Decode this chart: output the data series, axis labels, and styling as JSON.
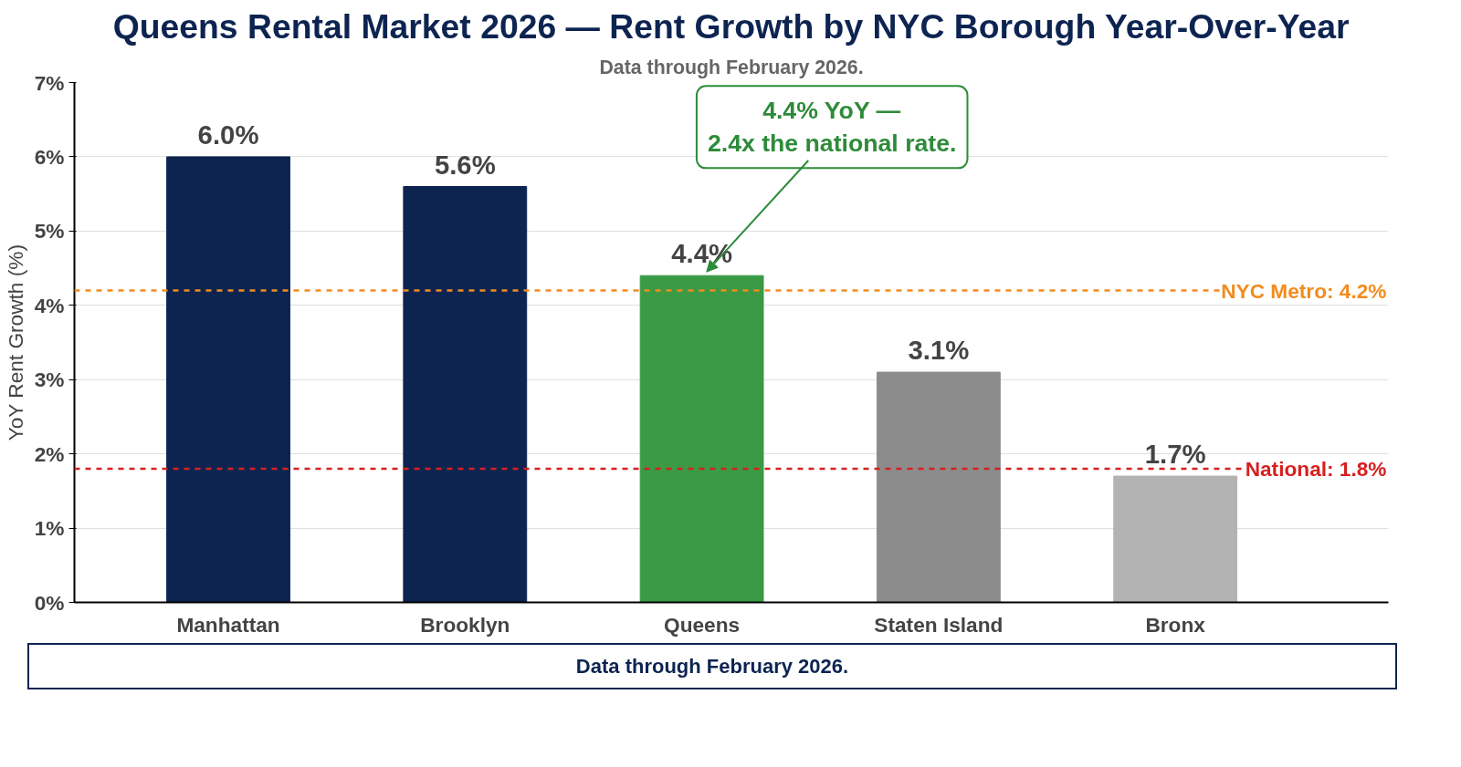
{
  "chart_data": {
    "type": "bar",
    "title": "Queens Rental Market 2026 — Rent Growth by NYC Borough Year-Over-Year",
    "subtitle": "Data through February 2026.",
    "ylabel": "YoY Rent Growth (%)",
    "categories": [
      "Manhattan",
      "Brooklyn",
      "Queens",
      "Staten Island",
      "Bronx"
    ],
    "values": [
      6.0,
      5.6,
      4.4,
      3.1,
      1.7
    ],
    "colors": [
      "#0d2451",
      "#0d2451",
      "#3a9a45",
      "#8c8c8c",
      "#b3b3b3"
    ],
    "value_labels": [
      "6.0%",
      "5.6%",
      "4.4%",
      "3.1%",
      "1.7%"
    ],
    "ylim": [
      0,
      7
    ],
    "yticks": [
      {
        "value": 0,
        "label": "0%"
      },
      {
        "value": 1,
        "label": "1%"
      },
      {
        "value": 2,
        "label": "2%"
      },
      {
        "value": 3,
        "label": "3%"
      },
      {
        "value": 4,
        "label": "4%"
      },
      {
        "value": 5,
        "label": "5%"
      },
      {
        "value": 6,
        "label": "6%"
      },
      {
        "value": 7,
        "label": "7%"
      }
    ],
    "grid": "y",
    "ref_lines": [
      {
        "axis": "y",
        "value": 4.2,
        "label": "NYC Metro: 4.2%",
        "color": "#f28c1e",
        "line_style": "dashed"
      },
      {
        "axis": "y",
        "value": 1.8,
        "label": "National: 1.8%",
        "color": "#d62020",
        "line_style": "dashed"
      }
    ],
    "annotations": [
      {
        "text": "4.4% YoY —\n2.4x the national rate.",
        "x": "Queens",
        "y": 4.4
      },
      "Data through February 2026."
    ]
  }
}
